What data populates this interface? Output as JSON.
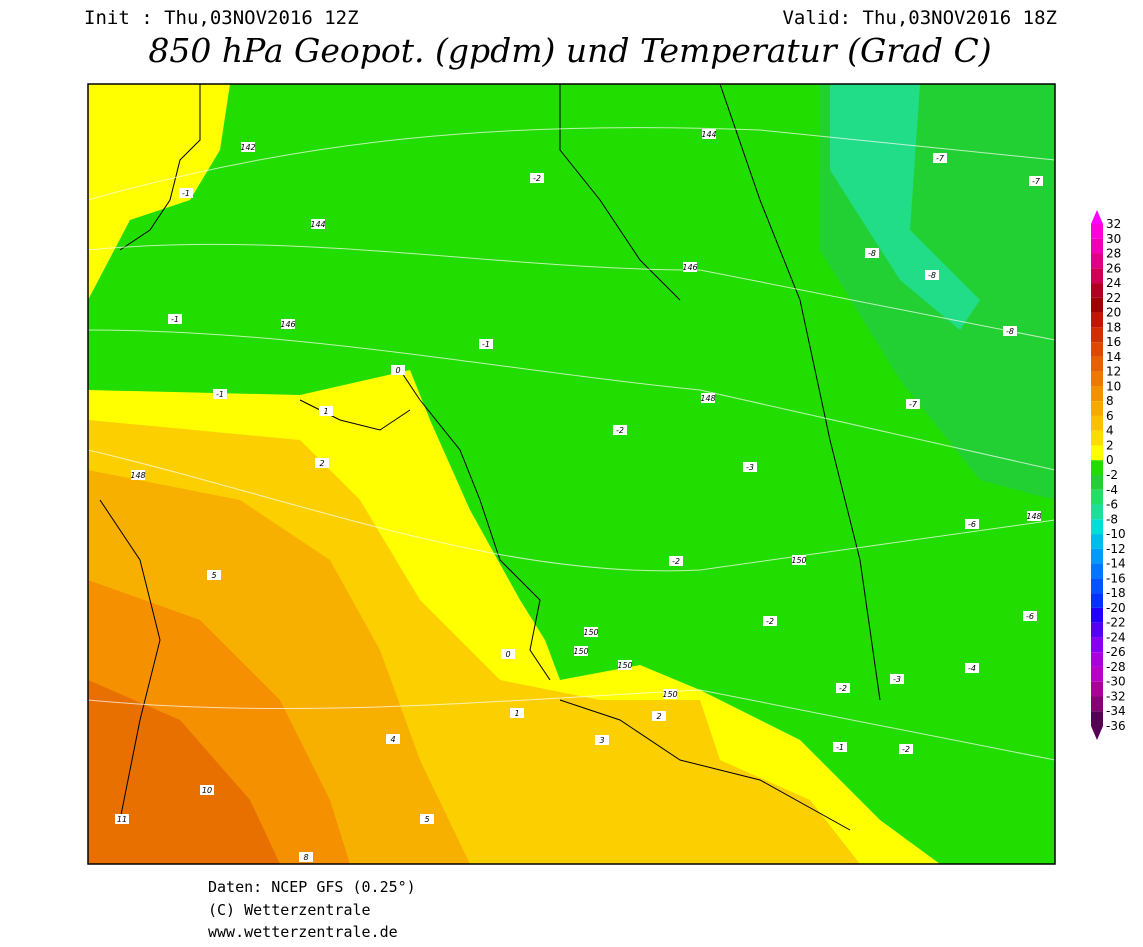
{
  "header": {
    "init": "Init : Thu,03NOV2016 12Z",
    "valid": "Valid: Thu,03NOV2016 18Z",
    "title": "850 hPa Geopot. (gpdm) und Temperatur (Grad C)"
  },
  "footer": {
    "source": "Daten: NCEP GFS (0.25°)",
    "copyright": "(C) Wetterzentrale",
    "url": "www.wetterzentrale.de"
  },
  "colorbar": {
    "levels": [
      32,
      30,
      28,
      26,
      24,
      22,
      20,
      18,
      16,
      14,
      12,
      10,
      8,
      6,
      4,
      2,
      0,
      -2,
      -4,
      -6,
      -8,
      -10,
      -12,
      -14,
      -16,
      -18,
      -20,
      -22,
      -24,
      -26,
      -28,
      -30,
      -32,
      -34,
      -36
    ],
    "colors": [
      "#ff00ff",
      "#ff00dd",
      "#ee00bb",
      "#dd0088",
      "#cc0055",
      "#b00022",
      "#a00000",
      "#c01800",
      "#d03000",
      "#e04800",
      "#e86000",
      "#f07800",
      "#f59000",
      "#f8a800",
      "#fcc000",
      "#ffdc00",
      "#ffff00",
      "#22dd00",
      "#22d033",
      "#22dd66",
      "#22dd99",
      "#00dddd",
      "#00bbee",
      "#0099ff",
      "#0077ff",
      "#0055ff",
      "#0033ff",
      "#2200ff",
      "#5500ee",
      "#8800ee",
      "#aa00dd",
      "#bb00cc",
      "#aa0099",
      "#880077",
      "#550055"
    ]
  },
  "map_labels": [
    "142",
    "144",
    "146",
    "146",
    "148",
    "148",
    "148",
    "150",
    "150",
    "150",
    "150",
    "150",
    "144",
    "-1",
    "-1",
    "-1",
    "-1",
    "-2",
    "-2",
    "-2",
    "-3",
    "-2",
    "-7",
    "-7",
    "-8",
    "-8",
    "-8",
    "-7",
    "-6",
    "-6",
    "-4",
    "-3",
    "-2",
    "0",
    "0",
    "1",
    "1",
    "2",
    "2",
    "3",
    "4",
    "5",
    "5",
    "8",
    "10",
    "11",
    "-1",
    "-2"
  ]
}
